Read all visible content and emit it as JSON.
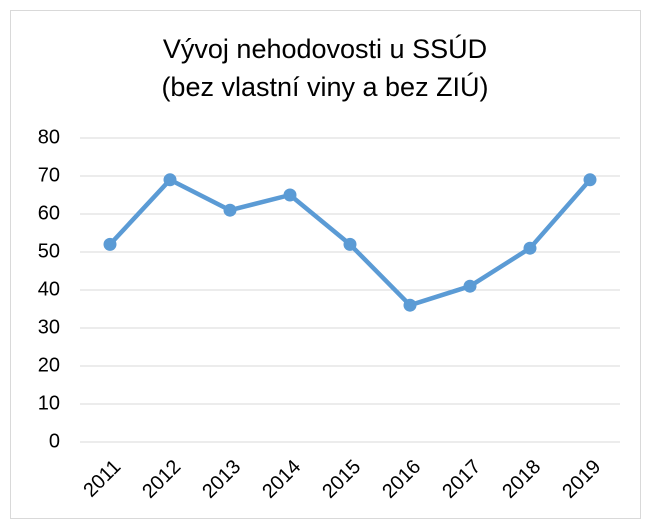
{
  "chart_data": {
    "type": "line",
    "title": [
      "Vývoj nehodovosti u SSÚD",
      "(bez vlastní viny a bez ZIÚ)"
    ],
    "categories": [
      "2011",
      "2012",
      "2013",
      "2014",
      "2015",
      "2016",
      "2017",
      "2018",
      "2019"
    ],
    "values": [
      52,
      69,
      61,
      65,
      52,
      36,
      41,
      51,
      69
    ],
    "color": "#5b9bd5",
    "title_color": "#f26f21",
    "ylim": [
      0,
      80
    ],
    "yticks": [
      0,
      10,
      20,
      30,
      40,
      50,
      60,
      70,
      80
    ],
    "grid": true
  }
}
